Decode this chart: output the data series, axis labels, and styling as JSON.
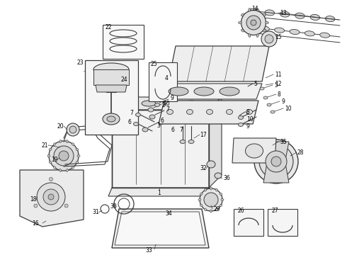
{
  "bg_color": "#ffffff",
  "line_color": "#3a3a3a",
  "text_color": "#000000",
  "fig_width": 4.9,
  "fig_height": 3.6,
  "dpi": 100,
  "lw": 0.7,
  "font_size": 5.5
}
